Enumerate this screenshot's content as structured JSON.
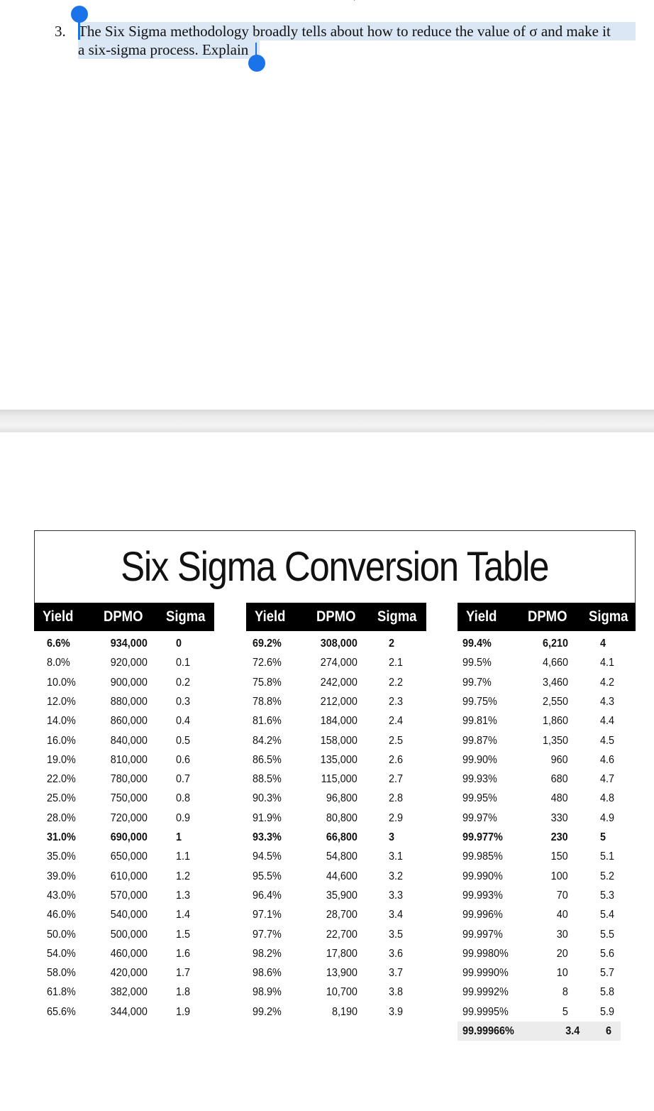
{
  "question": {
    "number": "3.",
    "line1": "The Six Sigma methodology broadly tells about how to reduce the value of σ and make it",
    "line2": "a six-sigma process. Explain"
  },
  "table": {
    "title": "Six Sigma Conversion Table",
    "headers": [
      "Yield",
      "DPMO",
      "Sigma"
    ],
    "groups": [
      {
        "rows": [
          [
            "6.6%",
            "934,000",
            "0"
          ],
          [
            "8.0%",
            "920,000",
            "0.1"
          ],
          [
            "10.0%",
            "900,000",
            "0.2"
          ],
          [
            "12.0%",
            "880,000",
            "0.3"
          ],
          [
            "14.0%",
            "860,000",
            "0.4"
          ],
          [
            "16.0%",
            "840,000",
            "0.5"
          ],
          [
            "19.0%",
            "810,000",
            "0.6"
          ],
          [
            "22.0%",
            "780,000",
            "0.7"
          ],
          [
            "25.0%",
            "750,000",
            "0.8"
          ],
          [
            "28.0%",
            "720,000",
            "0.9"
          ],
          [
            "31.0%",
            "690,000",
            "1"
          ],
          [
            "35.0%",
            "650,000",
            "1.1"
          ],
          [
            "39.0%",
            "610,000",
            "1.2"
          ],
          [
            "43.0%",
            "570,000",
            "1.3"
          ],
          [
            "46.0%",
            "540,000",
            "1.4"
          ],
          [
            "50.0%",
            "500,000",
            "1.5"
          ],
          [
            "54.0%",
            "460,000",
            "1.6"
          ],
          [
            "58.0%",
            "420,000",
            "1.7"
          ],
          [
            "61.8%",
            "382,000",
            "1.8"
          ],
          [
            "65.6%",
            "344,000",
            "1.9"
          ]
        ]
      },
      {
        "rows": [
          [
            "69.2%",
            "308,000",
            "2"
          ],
          [
            "72.6%",
            "274,000",
            "2.1"
          ],
          [
            "75.8%",
            "242,000",
            "2.2"
          ],
          [
            "78.8%",
            "212,000",
            "2.3"
          ],
          [
            "81.6%",
            "184,000",
            "2.4"
          ],
          [
            "84.2%",
            "158,000",
            "2.5"
          ],
          [
            "86.5%",
            "135,000",
            "2.6"
          ],
          [
            "88.5%",
            "115,000",
            "2.7"
          ],
          [
            "90.3%",
            "96,800",
            "2.8"
          ],
          [
            "91.9%",
            "80,800",
            "2.9"
          ],
          [
            "93.3%",
            "66,800",
            "3"
          ],
          [
            "94.5%",
            "54,800",
            "3.1"
          ],
          [
            "95.5%",
            "44,600",
            "3.2"
          ],
          [
            "96.4%",
            "35,900",
            "3.3"
          ],
          [
            "97.1%",
            "28,700",
            "3.4"
          ],
          [
            "97.7%",
            "22,700",
            "3.5"
          ],
          [
            "98.2%",
            "17,800",
            "3.6"
          ],
          [
            "98.6%",
            "13,900",
            "3.7"
          ],
          [
            "98.9%",
            "10,700",
            "3.8"
          ],
          [
            "99.2%",
            "8,190",
            "3.9"
          ]
        ]
      },
      {
        "rows": [
          [
            "99.4%",
            "6,210",
            "4"
          ],
          [
            "99.5%",
            "4,660",
            "4.1"
          ],
          [
            "99.7%",
            "3,460",
            "4.2"
          ],
          [
            "99.75%",
            "2,550",
            "4.3"
          ],
          [
            "99.81%",
            "1,860",
            "4.4"
          ],
          [
            "99.87%",
            "1,350",
            "4.5"
          ],
          [
            "99.90%",
            "960",
            "4.6"
          ],
          [
            "99.93%",
            "680",
            "4.7"
          ],
          [
            "99.95%",
            "480",
            "4.8"
          ],
          [
            "99.97%",
            "330",
            "4.9"
          ],
          [
            "99.977%",
            "230",
            "5"
          ],
          [
            "99.985%",
            "150",
            "5.1"
          ],
          [
            "99.990%",
            "100",
            "5.2"
          ],
          [
            "99.993%",
            "70",
            "5.3"
          ],
          [
            "99.996%",
            "40",
            "5.4"
          ],
          [
            "99.997%",
            "30",
            "5.5"
          ],
          [
            "99.9980%",
            "20",
            "5.6"
          ],
          [
            "99.9990%",
            "10",
            "5.7"
          ],
          [
            "99.9992%",
            "8",
            "5.8"
          ],
          [
            "99.9995%",
            "5",
            "5.9"
          ]
        ]
      }
    ],
    "bold_row_indices": [
      0,
      10
    ],
    "final_row": [
      "99.99966%",
      "3.4",
      "6"
    ]
  }
}
